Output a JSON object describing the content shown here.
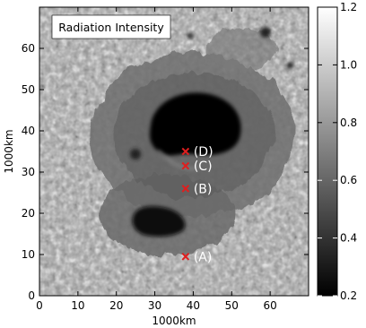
{
  "chart_data": {
    "type": "heatmap",
    "title": "Radiation Intensity",
    "xlabel": "1000km",
    "ylabel": "1000km",
    "xlim": [
      0,
      70
    ],
    "ylim": [
      0,
      70
    ],
    "x_ticks": [
      0,
      10,
      20,
      30,
      40,
      50,
      60
    ],
    "y_ticks": [
      0,
      10,
      20,
      30,
      40,
      50,
      60
    ],
    "colorbar": {
      "range": [
        0.2,
        1.2
      ],
      "ticks": [
        0.2,
        0.4,
        0.6,
        0.8,
        1.0,
        1.2
      ],
      "colormap": "grayscale",
      "low_color": "#000000",
      "high_color": "#ffffff"
    },
    "markers": [
      {
        "label": "(A)",
        "x": 38,
        "y": 9.5
      },
      {
        "label": "(B)",
        "x": 38,
        "y": 26
      },
      {
        "label": "(C)",
        "x": 38,
        "y": 31.5
      },
      {
        "label": "(D)",
        "x": 38,
        "y": 35
      }
    ],
    "marker_color": "#e01e1e"
  }
}
